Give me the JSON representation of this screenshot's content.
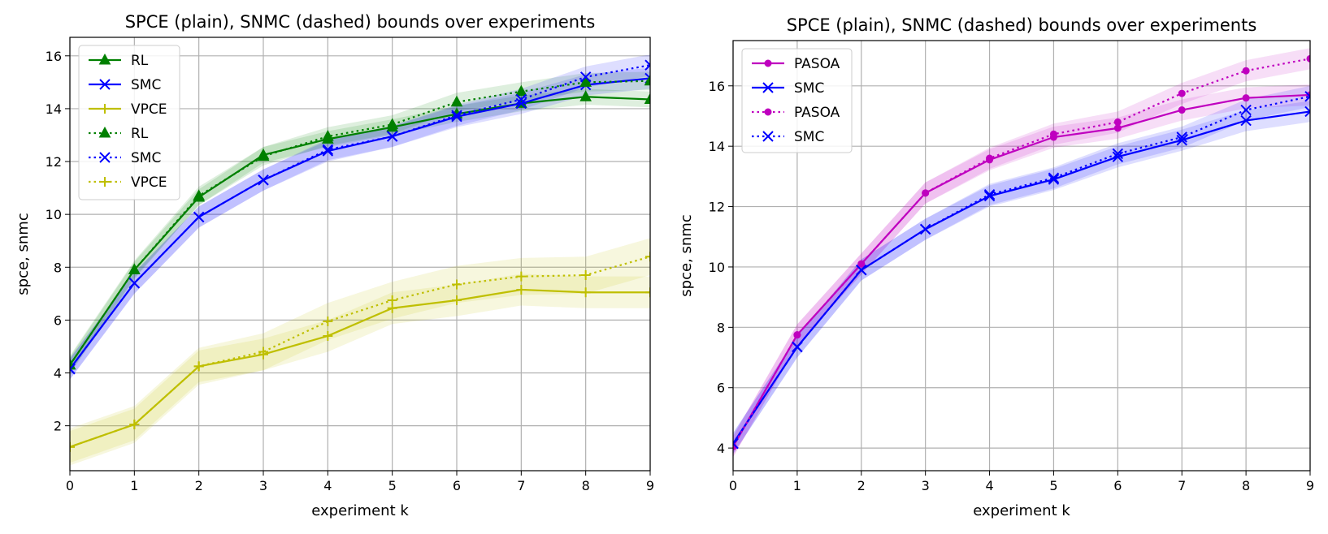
{
  "chart_data": [
    {
      "type": "line",
      "title": "SPCE (plain), SNMC (dashed) bounds over experiments",
      "xlabel": "experiment k",
      "ylabel": "spce, snmc",
      "xlim": [
        0,
        9
      ],
      "ylim": [
        0.3,
        16.7
      ],
      "xticks": [
        0,
        1,
        2,
        3,
        4,
        5,
        6,
        7,
        8,
        9
      ],
      "yticks": [
        2,
        4,
        6,
        8,
        10,
        12,
        14,
        16
      ],
      "grid": true,
      "legend_position": "top-left",
      "x": [
        0,
        1,
        2,
        3,
        4,
        5,
        6,
        7,
        8,
        9
      ],
      "series": [
        {
          "name": "RL",
          "style": "solid",
          "marker": "triangle",
          "color": "#008000",
          "values": [
            4.3,
            7.9,
            10.65,
            12.25,
            12.85,
            13.3,
            13.8,
            14.2,
            14.45,
            14.35
          ],
          "band": 0.3
        },
        {
          "name": "SMC",
          "style": "solid",
          "marker": "x",
          "color": "#0000ff",
          "values": [
            4.15,
            7.4,
            9.9,
            11.3,
            12.4,
            12.95,
            13.7,
            14.2,
            14.9,
            15.15
          ],
          "band": 0.4
        },
        {
          "name": "VPCE",
          "style": "solid",
          "marker": "plus",
          "color": "#bfbf00",
          "values": [
            1.2,
            2.05,
            4.25,
            4.7,
            5.4,
            6.45,
            6.75,
            7.15,
            7.05,
            7.05
          ],
          "band": 0.6
        },
        {
          "name": "RL",
          "style": "dotted",
          "marker": "triangle",
          "color": "#008000",
          "values": [
            4.3,
            7.9,
            10.7,
            12.2,
            12.95,
            13.4,
            14.25,
            14.65,
            15.0,
            15.05
          ],
          "band": 0.35
        },
        {
          "name": "SMC",
          "style": "dotted",
          "marker": "x",
          "color": "#0000ff",
          "values": [
            4.15,
            7.4,
            9.9,
            11.3,
            12.45,
            12.95,
            13.75,
            14.35,
            15.2,
            15.65
          ],
          "band": 0.4
        },
        {
          "name": "VPCE",
          "style": "dotted",
          "marker": "plus",
          "color": "#bfbf00",
          "values": [
            1.2,
            2.05,
            4.25,
            4.8,
            5.95,
            6.75,
            7.35,
            7.65,
            7.7,
            8.4
          ],
          "band": 0.7
        }
      ]
    },
    {
      "type": "line",
      "title": "SPCE (plain), SNMC (dashed) bounds over experiments",
      "xlabel": "experiment k",
      "ylabel": "spce, snmc",
      "xlim": [
        0,
        9
      ],
      "ylim": [
        3.25,
        17.5
      ],
      "xticks": [
        0,
        1,
        2,
        3,
        4,
        5,
        6,
        7,
        8,
        9
      ],
      "yticks": [
        4,
        6,
        8,
        10,
        12,
        14,
        16
      ],
      "grid": true,
      "legend_position": "top-left",
      "x": [
        0,
        1,
        2,
        3,
        4,
        5,
        6,
        7,
        8,
        9
      ],
      "series": [
        {
          "name": "PASOA",
          "style": "solid",
          "marker": "dot",
          "color": "#bf00bf",
          "values": [
            4.05,
            7.75,
            10.1,
            12.45,
            13.55,
            14.3,
            14.6,
            15.2,
            15.6,
            15.7
          ],
          "band": 0.35
        },
        {
          "name": "SMC",
          "style": "solid",
          "marker": "x",
          "color": "#0000ff",
          "values": [
            4.15,
            7.35,
            9.9,
            11.25,
            12.35,
            12.9,
            13.65,
            14.2,
            14.85,
            15.15
          ],
          "band": 0.35
        },
        {
          "name": "PASOA",
          "style": "dotted",
          "marker": "dot",
          "color": "#bf00bf",
          "values": [
            4.05,
            7.75,
            10.1,
            12.45,
            13.6,
            14.4,
            14.8,
            15.75,
            16.5,
            16.9
          ],
          "band": 0.35
        },
        {
          "name": "SMC",
          "style": "dotted",
          "marker": "x",
          "color": "#0000ff",
          "values": [
            4.15,
            7.35,
            9.9,
            11.25,
            12.4,
            12.95,
            13.75,
            14.3,
            15.2,
            15.65
          ],
          "band": 0.35
        }
      ]
    }
  ]
}
